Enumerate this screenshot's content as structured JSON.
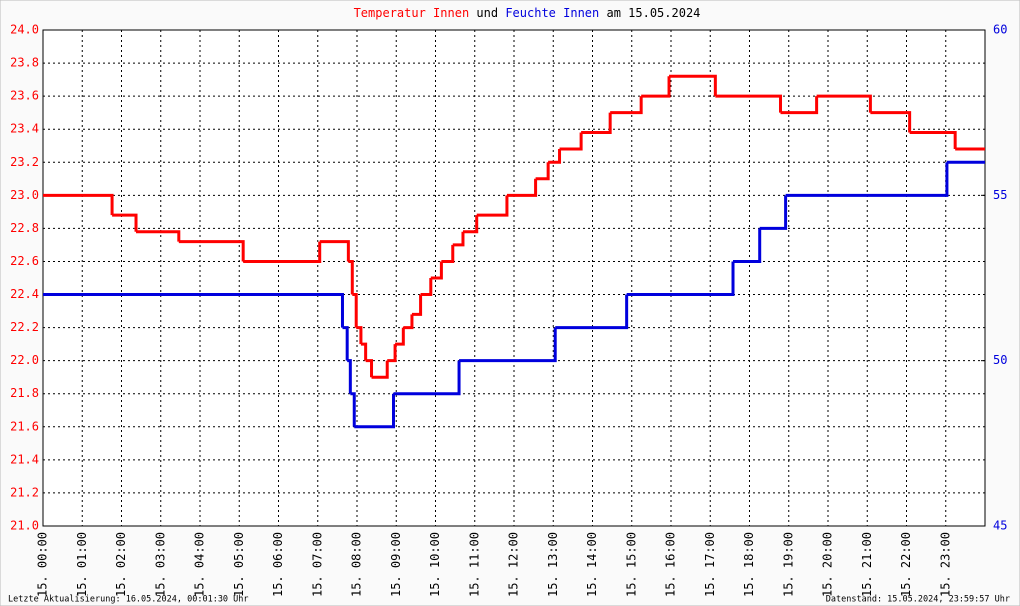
{
  "chart_data": {
    "type": "step",
    "title_connector": "und",
    "title_suffix": "am 15.05.2024",
    "footer_left": "Letzte Aktualisierung: 16.05.2024, 00:01:30 Uhr",
    "footer_right": "Datenstand: 15.05.2024, 23:59:57 Uhr",
    "grid": true,
    "xlim": [
      0,
      24
    ],
    "xticks": [
      {
        "value": 0,
        "label": "15. 00:00"
      },
      {
        "value": 1,
        "label": "15. 01:00"
      },
      {
        "value": 2,
        "label": "15. 02:00"
      },
      {
        "value": 3,
        "label": "15. 03:00"
      },
      {
        "value": 4,
        "label": "15. 04:00"
      },
      {
        "value": 5,
        "label": "15. 05:00"
      },
      {
        "value": 6,
        "label": "15. 06:00"
      },
      {
        "value": 7,
        "label": "15. 07:00"
      },
      {
        "value": 8,
        "label": "15. 08:00"
      },
      {
        "value": 9,
        "label": "15. 09:00"
      },
      {
        "value": 10,
        "label": "15. 10:00"
      },
      {
        "value": 11,
        "label": "15. 11:00"
      },
      {
        "value": 12,
        "label": "15. 12:00"
      },
      {
        "value": 13,
        "label": "15. 13:00"
      },
      {
        "value": 14,
        "label": "15. 14:00"
      },
      {
        "value": 15,
        "label": "15. 15:00"
      },
      {
        "value": 16,
        "label": "15. 16:00"
      },
      {
        "value": 17,
        "label": "15. 17:00"
      },
      {
        "value": 18,
        "label": "15. 18:00"
      },
      {
        "value": 19,
        "label": "15. 19:00"
      },
      {
        "value": 20,
        "label": "15. 20:00"
      },
      {
        "value": 21,
        "label": "15. 21:00"
      },
      {
        "value": 22,
        "label": "15. 22:00"
      },
      {
        "value": 23,
        "label": "15. 23:00"
      }
    ],
    "ylim": [
      21,
      24
    ],
    "yticks": [
      {
        "value": 21,
        "label": "21.0"
      },
      21.2,
      21.4,
      21.6,
      21.8,
      {
        "value": 22,
        "label": "22.0"
      },
      22.2,
      22.4,
      22.6,
      22.8,
      {
        "value": 23,
        "label": "23.0"
      },
      23.2,
      23.4,
      23.6,
      23.8,
      {
        "value": 24,
        "label": "24.0"
      }
    ],
    "y2lim": [
      45,
      60
    ],
    "y2ticks": [
      45,
      50,
      55,
      60
    ],
    "series": [
      {
        "name": "Temperatur Innen",
        "color": "#ff0000",
        "x": [
          0,
          1.76,
          2.37,
          3.46,
          5.1,
          7.05,
          7.78,
          7.88,
          7.98,
          8.1,
          8.22,
          8.37,
          8.77,
          8.97,
          9.18,
          9.4,
          9.62,
          9.88,
          10.15,
          10.44,
          10.7,
          11.05,
          11.82,
          12.55,
          12.87,
          13.16,
          13.71,
          14.45,
          15.24,
          15.95,
          17.13,
          18.79,
          19.71,
          21.08,
          22.08,
          23.24,
          24
        ],
        "values": [
          23.0,
          22.88,
          22.78,
          22.72,
          22.6,
          22.72,
          22.6,
          22.4,
          22.2,
          22.1,
          22.0,
          21.9,
          22.0,
          22.1,
          22.2,
          22.28,
          22.4,
          22.5,
          22.6,
          22.7,
          22.78,
          22.88,
          23.0,
          23.1,
          23.2,
          23.28,
          23.38,
          23.5,
          23.6,
          23.72,
          23.6,
          23.5,
          23.6,
          23.5,
          23.38,
          23.28,
          23.28
        ]
      },
      {
        "name": "Feuchte Innen",
        "color": "#0000dd",
        "axis": "y2",
        "x": [
          0,
          7.63,
          7.75,
          7.83,
          7.93,
          8.93,
          10.6,
          13.05,
          14.87,
          17.58,
          18.26,
          18.92,
          23.03,
          24
        ],
        "values": [
          52,
          51,
          50,
          49,
          48,
          49,
          50,
          51,
          52,
          53,
          54,
          55,
          56,
          56
        ]
      }
    ]
  }
}
